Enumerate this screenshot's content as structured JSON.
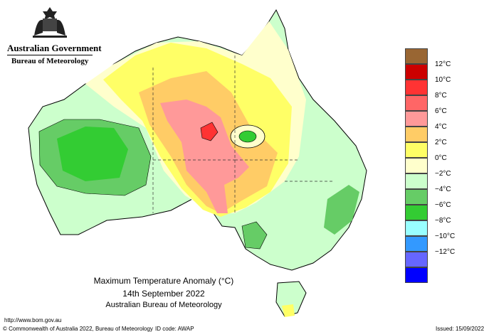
{
  "header": {
    "government": "Australian Government",
    "bureau": "Bureau of Meteorology"
  },
  "title": {
    "line1": "Maximum Temperature Anomaly (°C)",
    "line2": "14th September 2022",
    "line3": "Australian Bureau of Meteorology"
  },
  "legend": {
    "units": "°C",
    "items": [
      {
        "label": "",
        "color": "#996633"
      },
      {
        "label": "12°C",
        "color": "#cc0000"
      },
      {
        "label": "10°C",
        "color": "#ff3333"
      },
      {
        "label": "8°C",
        "color": "#ff6666"
      },
      {
        "label": "6°C",
        "color": "#ff9999"
      },
      {
        "label": "4°C",
        "color": "#ffcc66"
      },
      {
        "label": "2°C",
        "color": "#ffff66"
      },
      {
        "label": "0°C",
        "color": "#ffffcc"
      },
      {
        "label": "−2°C",
        "color": "#ccffcc"
      },
      {
        "label": "−4°C",
        "color": "#66cc66"
      },
      {
        "label": "−6°C",
        "color": "#33cc33"
      },
      {
        "label": "−8°C",
        "color": "#99ffff"
      },
      {
        "label": "−10°C",
        "color": "#3399ff"
      },
      {
        "label": "−12°C",
        "color": "#6666ff"
      },
      {
        "label": "",
        "color": "#0000ff"
      }
    ]
  },
  "footer": {
    "url": "http://www.bom.gov.au",
    "copyright": "© Commonwealth of Australia 2022, Bureau of Meteorology",
    "id_code": "ID code: AWAP",
    "issued": "Issued: 15/09/2022"
  },
  "colors": {
    "land_base": "#ccffcc",
    "cool_green": "#33cc33",
    "mid_green": "#66cc66",
    "neutral": "#ffffcc",
    "warm_yellow": "#ffff66",
    "warm_orange": "#ffcc66",
    "hot_pink": "#ff9999",
    "hot_red": "#ff3333"
  }
}
